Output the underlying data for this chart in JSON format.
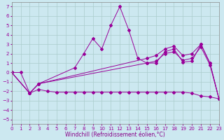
{
  "bg_color": "#cce8f0",
  "line_color": "#990099",
  "grid_color": "#aacccc",
  "xlim": [
    0,
    23
  ],
  "ylim": [
    -5.5,
    7.5
  ],
  "xlabel": "Windchill (Refroidissement éolien,°C)",
  "xlabel_color": "#880088",
  "xlabel_fontsize": 5.5,
  "tick_fontsize": 5,
  "spiky_x": [
    0,
    1,
    2,
    3,
    7,
    8,
    9,
    10,
    11,
    12,
    13,
    14,
    15,
    16,
    17,
    18,
    19,
    20,
    21,
    22,
    23
  ],
  "spiky_y": [
    0.0,
    0.0,
    -2.2,
    -1.2,
    0.5,
    2.0,
    3.6,
    2.5,
    5.0,
    7.0,
    4.5,
    1.5,
    1.0,
    1.0,
    2.2,
    2.5,
    1.1,
    1.2,
    3.0,
    1.0,
    -2.8
  ],
  "upper_x": [
    0,
    2,
    3,
    15,
    16,
    17,
    18,
    19,
    20,
    21,
    22,
    23
  ],
  "upper_y": [
    0.0,
    -2.2,
    -1.2,
    1.5,
    1.8,
    2.5,
    2.8,
    1.8,
    2.0,
    3.0,
    1.0,
    -2.8
  ],
  "mid_x": [
    0,
    2,
    3,
    15,
    16,
    17,
    18,
    19,
    20,
    21,
    22,
    23
  ],
  "mid_y": [
    0.0,
    -2.2,
    -1.2,
    1.0,
    1.2,
    2.0,
    2.2,
    1.3,
    1.5,
    2.7,
    0.8,
    -2.8
  ],
  "low_x": [
    0,
    2,
    3,
    4,
    5,
    6,
    7,
    8,
    9,
    10,
    11,
    12,
    13,
    14,
    15,
    16,
    17,
    18,
    19,
    20,
    21,
    22,
    23
  ],
  "low_y": [
    0.0,
    -2.2,
    -1.8,
    -2.0,
    -2.1,
    -2.1,
    -2.1,
    -2.1,
    -2.1,
    -2.1,
    -2.1,
    -2.1,
    -2.1,
    -2.1,
    -2.1,
    -2.1,
    -2.1,
    -2.1,
    -2.1,
    -2.2,
    -2.5,
    -2.6,
    -2.8
  ]
}
